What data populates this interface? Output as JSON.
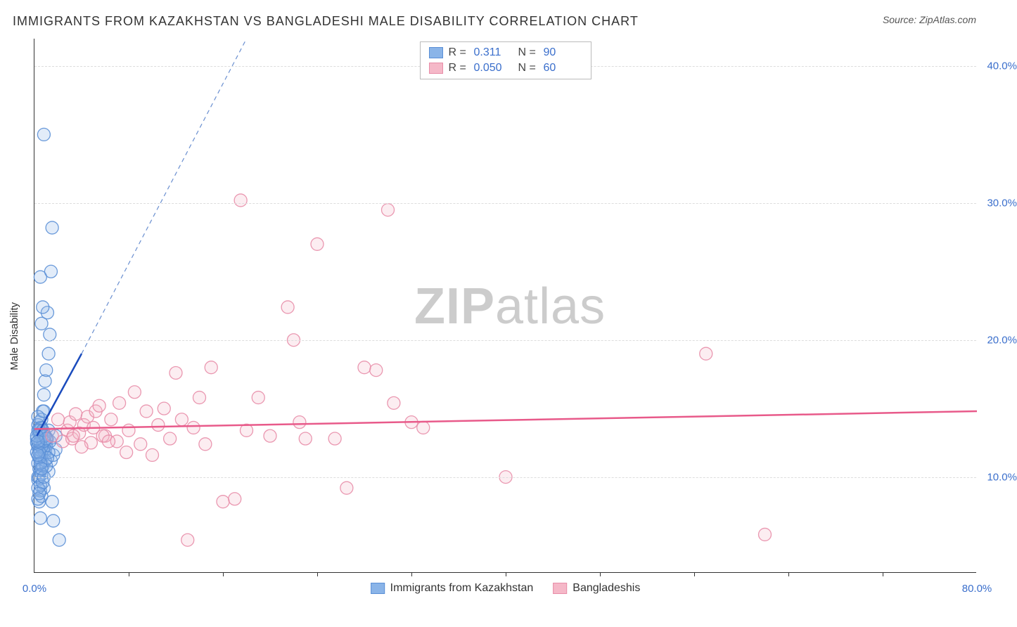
{
  "title": "IMMIGRANTS FROM KAZAKHSTAN VS BANGLADESHI MALE DISABILITY CORRELATION CHART",
  "source": "Source: ZipAtlas.com",
  "y_axis_label": "Male Disability",
  "watermark": {
    "zip": "ZIP",
    "atlas": "atlas"
  },
  "chart": {
    "type": "scatter",
    "xlim": [
      0,
      80
    ],
    "ylim": [
      3,
      42
    ],
    "y_ticks": [
      10,
      20,
      30,
      40
    ],
    "y_tick_labels": [
      "10.0%",
      "20.0%",
      "30.0%",
      "40.0%"
    ],
    "x_ticks": [
      0,
      80
    ],
    "x_tick_labels": [
      "0.0%",
      "80.0%"
    ],
    "x_minor_ticks": [
      8,
      16,
      24,
      32,
      40,
      48,
      56,
      64,
      72
    ],
    "grid_color": "#dddddd",
    "axis_color": "#333333",
    "label_color": "#3b6fcc",
    "background_color": "#ffffff",
    "point_radius": 9,
    "point_fill_opacity": 0.25,
    "point_stroke_opacity": 0.9,
    "point_stroke_width": 1.3
  },
  "series": [
    {
      "key": "kazakhstan",
      "label": "Immigrants from Kazakhstan",
      "color": "#8ab4e8",
      "stroke": "#5a8fd6",
      "line_color": "#1a4bbd",
      "dash_color": "#6a8fd0",
      "R_label": "R =",
      "R": "0.311",
      "N_label": "N =",
      "N": "90",
      "regression_solid": {
        "x1": 0.2,
        "y1": 13.0,
        "x2": 4.0,
        "y2": 19.0
      },
      "regression_dash": {
        "x1": 4.0,
        "y1": 19.0,
        "x2": 18.0,
        "y2": 42.0
      },
      "points": [
        [
          0.3,
          12.2
        ],
        [
          0.4,
          13.1
        ],
        [
          0.5,
          11.4
        ],
        [
          0.6,
          12.8
        ],
        [
          0.4,
          10.6
        ],
        [
          0.3,
          9.8
        ],
        [
          0.6,
          11.0
        ],
        [
          0.7,
          12.4
        ],
        [
          0.8,
          13.2
        ],
        [
          0.2,
          12.5
        ],
        [
          0.9,
          11.8
        ],
        [
          0.4,
          14.0
        ],
        [
          0.5,
          12.0
        ],
        [
          0.5,
          10.4
        ],
        [
          0.7,
          10.8
        ],
        [
          0.9,
          12.0
        ],
        [
          1.0,
          12.3
        ],
        [
          1.1,
          12.8
        ],
        [
          0.6,
          13.6
        ],
        [
          0.7,
          14.8
        ],
        [
          0.8,
          16.0
        ],
        [
          0.9,
          17.0
        ],
        [
          1.0,
          17.8
        ],
        [
          1.2,
          19.0
        ],
        [
          1.3,
          20.4
        ],
        [
          0.6,
          21.2
        ],
        [
          1.1,
          22.0
        ],
        [
          0.7,
          22.4
        ],
        [
          0.5,
          24.6
        ],
        [
          1.4,
          25.0
        ],
        [
          1.5,
          28.2
        ],
        [
          0.8,
          35.0
        ],
        [
          0.4,
          8.2
        ],
        [
          0.5,
          9.0
        ],
        [
          0.6,
          8.6
        ],
        [
          0.8,
          9.2
        ],
        [
          1.2,
          10.4
        ],
        [
          1.4,
          11.2
        ],
        [
          1.6,
          11.6
        ],
        [
          1.8,
          12.0
        ],
        [
          1.3,
          12.6
        ],
        [
          1.2,
          13.4
        ],
        [
          1.8,
          13.0
        ],
        [
          0.3,
          13.8
        ],
        [
          1.5,
          8.2
        ],
        [
          1.6,
          6.8
        ],
        [
          0.5,
          7.0
        ],
        [
          2.1,
          5.4
        ],
        [
          0.6,
          14.2
        ],
        [
          0.8,
          14.8
        ],
        [
          0.3,
          11.0
        ],
        [
          0.3,
          10.0
        ],
        [
          0.6,
          11.6
        ],
        [
          0.4,
          12.0
        ],
        [
          0.7,
          12.0
        ],
        [
          0.9,
          11.2
        ],
        [
          1.0,
          10.8
        ],
        [
          1.2,
          11.8
        ],
        [
          0.4,
          11.4
        ],
        [
          0.5,
          12.6
        ],
        [
          0.8,
          13.0
        ],
        [
          0.3,
          13.4
        ],
        [
          0.6,
          12.2
        ],
        [
          0.2,
          11.8
        ],
        [
          0.4,
          10.0
        ],
        [
          0.5,
          9.4
        ],
        [
          0.3,
          9.2
        ],
        [
          0.6,
          10.2
        ],
        [
          0.7,
          9.6
        ],
        [
          0.8,
          10.0
        ],
        [
          0.3,
          8.4
        ],
        [
          0.4,
          8.8
        ],
        [
          0.5,
          13.2
        ],
        [
          0.6,
          13.0
        ],
        [
          0.8,
          12.6
        ],
        [
          0.3,
          12.4
        ],
        [
          0.2,
          12.8
        ],
        [
          0.4,
          13.4
        ],
        [
          0.5,
          13.6
        ],
        [
          0.7,
          13.4
        ],
        [
          0.9,
          13.0
        ],
        [
          1.0,
          12.8
        ],
        [
          1.1,
          11.4
        ],
        [
          0.3,
          14.4
        ],
        [
          0.2,
          13.0
        ],
        [
          0.4,
          11.8
        ],
        [
          0.5,
          11.0
        ],
        [
          0.6,
          10.6
        ],
        [
          0.3,
          11.6
        ],
        [
          0.3,
          12.6
        ]
      ]
    },
    {
      "key": "bangladeshi",
      "label": "Bangladeshis",
      "color": "#f5b8c8",
      "stroke": "#e88da8",
      "line_color": "#e85a8a",
      "R_label": "R =",
      "R": "0.050",
      "N_label": "N =",
      "N": "60",
      "regression_solid": {
        "x1": 0,
        "y1": 13.5,
        "x2": 80,
        "y2": 14.8
      },
      "points": [
        [
          1.5,
          13.0
        ],
        [
          2.0,
          14.2
        ],
        [
          2.4,
          12.6
        ],
        [
          2.8,
          13.4
        ],
        [
          3.0,
          14.0
        ],
        [
          3.2,
          12.8
        ],
        [
          3.5,
          14.6
        ],
        [
          3.8,
          13.2
        ],
        [
          4.2,
          13.8
        ],
        [
          4.5,
          14.4
        ],
        [
          4.8,
          12.5
        ],
        [
          5.0,
          13.6
        ],
        [
          5.2,
          14.8
        ],
        [
          5.5,
          15.2
        ],
        [
          6.0,
          13.0
        ],
        [
          6.5,
          14.2
        ],
        [
          7.0,
          12.6
        ],
        [
          7.2,
          15.4
        ],
        [
          7.8,
          11.8
        ],
        [
          8.0,
          13.4
        ],
        [
          8.5,
          16.2
        ],
        [
          9.0,
          12.4
        ],
        [
          9.5,
          14.8
        ],
        [
          10.0,
          11.6
        ],
        [
          10.5,
          13.8
        ],
        [
          11.0,
          15.0
        ],
        [
          11.5,
          12.8
        ],
        [
          12.0,
          17.6
        ],
        [
          12.5,
          14.2
        ],
        [
          13.0,
          5.4
        ],
        [
          13.5,
          13.6
        ],
        [
          14.0,
          15.8
        ],
        [
          14.5,
          12.4
        ],
        [
          15.0,
          18.0
        ],
        [
          16.0,
          8.2
        ],
        [
          17.0,
          8.4
        ],
        [
          17.5,
          30.2
        ],
        [
          18.0,
          13.4
        ],
        [
          19.0,
          15.8
        ],
        [
          20.0,
          13.0
        ],
        [
          21.5,
          22.4
        ],
        [
          22.0,
          20.0
        ],
        [
          22.5,
          14.0
        ],
        [
          23.0,
          12.8
        ],
        [
          24.0,
          27.0
        ],
        [
          25.5,
          12.8
        ],
        [
          26.5,
          9.2
        ],
        [
          28.0,
          18.0
        ],
        [
          29.0,
          17.8
        ],
        [
          30.0,
          29.5
        ],
        [
          30.5,
          15.4
        ],
        [
          32.0,
          14.0
        ],
        [
          33.0,
          13.6
        ],
        [
          40.0,
          10.0
        ],
        [
          57.0,
          19.0
        ],
        [
          62.0,
          5.8
        ],
        [
          5.8,
          13.0
        ],
        [
          6.3,
          12.6
        ],
        [
          4.0,
          12.2
        ],
        [
          3.3,
          13.0
        ]
      ]
    }
  ]
}
